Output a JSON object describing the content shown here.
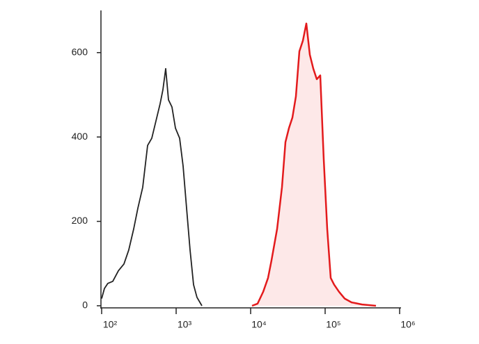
{
  "chart_data": {
    "type": "line",
    "xscale": "log",
    "xlim": [
      100,
      1000000
    ],
    "ylim": [
      -5,
      700
    ],
    "xticks": [
      {
        "value": 100,
        "label": "10²"
      },
      {
        "value": 1000,
        "label": "10³"
      },
      {
        "value": 10000,
        "label": "10⁴"
      },
      {
        "value": 100000,
        "label": "10⁵"
      },
      {
        "value": 1000000,
        "label": "10⁶"
      }
    ],
    "yticks": [
      0,
      200,
      400,
      600
    ],
    "series": [
      {
        "color": "#222222",
        "x": [
          100,
          109,
          121,
          141,
          168,
          199,
          231,
          269,
          306,
          356,
          414,
          471,
          536,
          610,
          664,
          724,
          789,
          879,
          979,
          1113,
          1240,
          1380,
          1538,
          1714,
          1905,
          2218
        ],
        "values": [
          17,
          41,
          53,
          58,
          83,
          99,
          132,
          182,
          231,
          281,
          380,
          397,
          438,
          479,
          512,
          562,
          488,
          471,
          421,
          397,
          331,
          231,
          132,
          50,
          20,
          0
        ]
      },
      {
        "color": "#e31a1c",
        "fill": "#fde8e8",
        "x": [
          10450,
          12400,
          14720,
          17140,
          19050,
          22650,
          26360,
          29320,
          32660,
          36390,
          40470,
          45080,
          50230,
          55980,
          62230,
          69340,
          77270,
          86100,
          95730,
          106700,
          118900,
          132100,
          153800,
          182700,
          226500,
          312600,
          480800
        ],
        "values": [
          0,
          5,
          33,
          66,
          107,
          182,
          281,
          388,
          421,
          446,
          496,
          603,
          628,
          669,
          595,
          562,
          537,
          546,
          347,
          182,
          66,
          50,
          33,
          17,
          8,
          3,
          0
        ]
      }
    ]
  }
}
